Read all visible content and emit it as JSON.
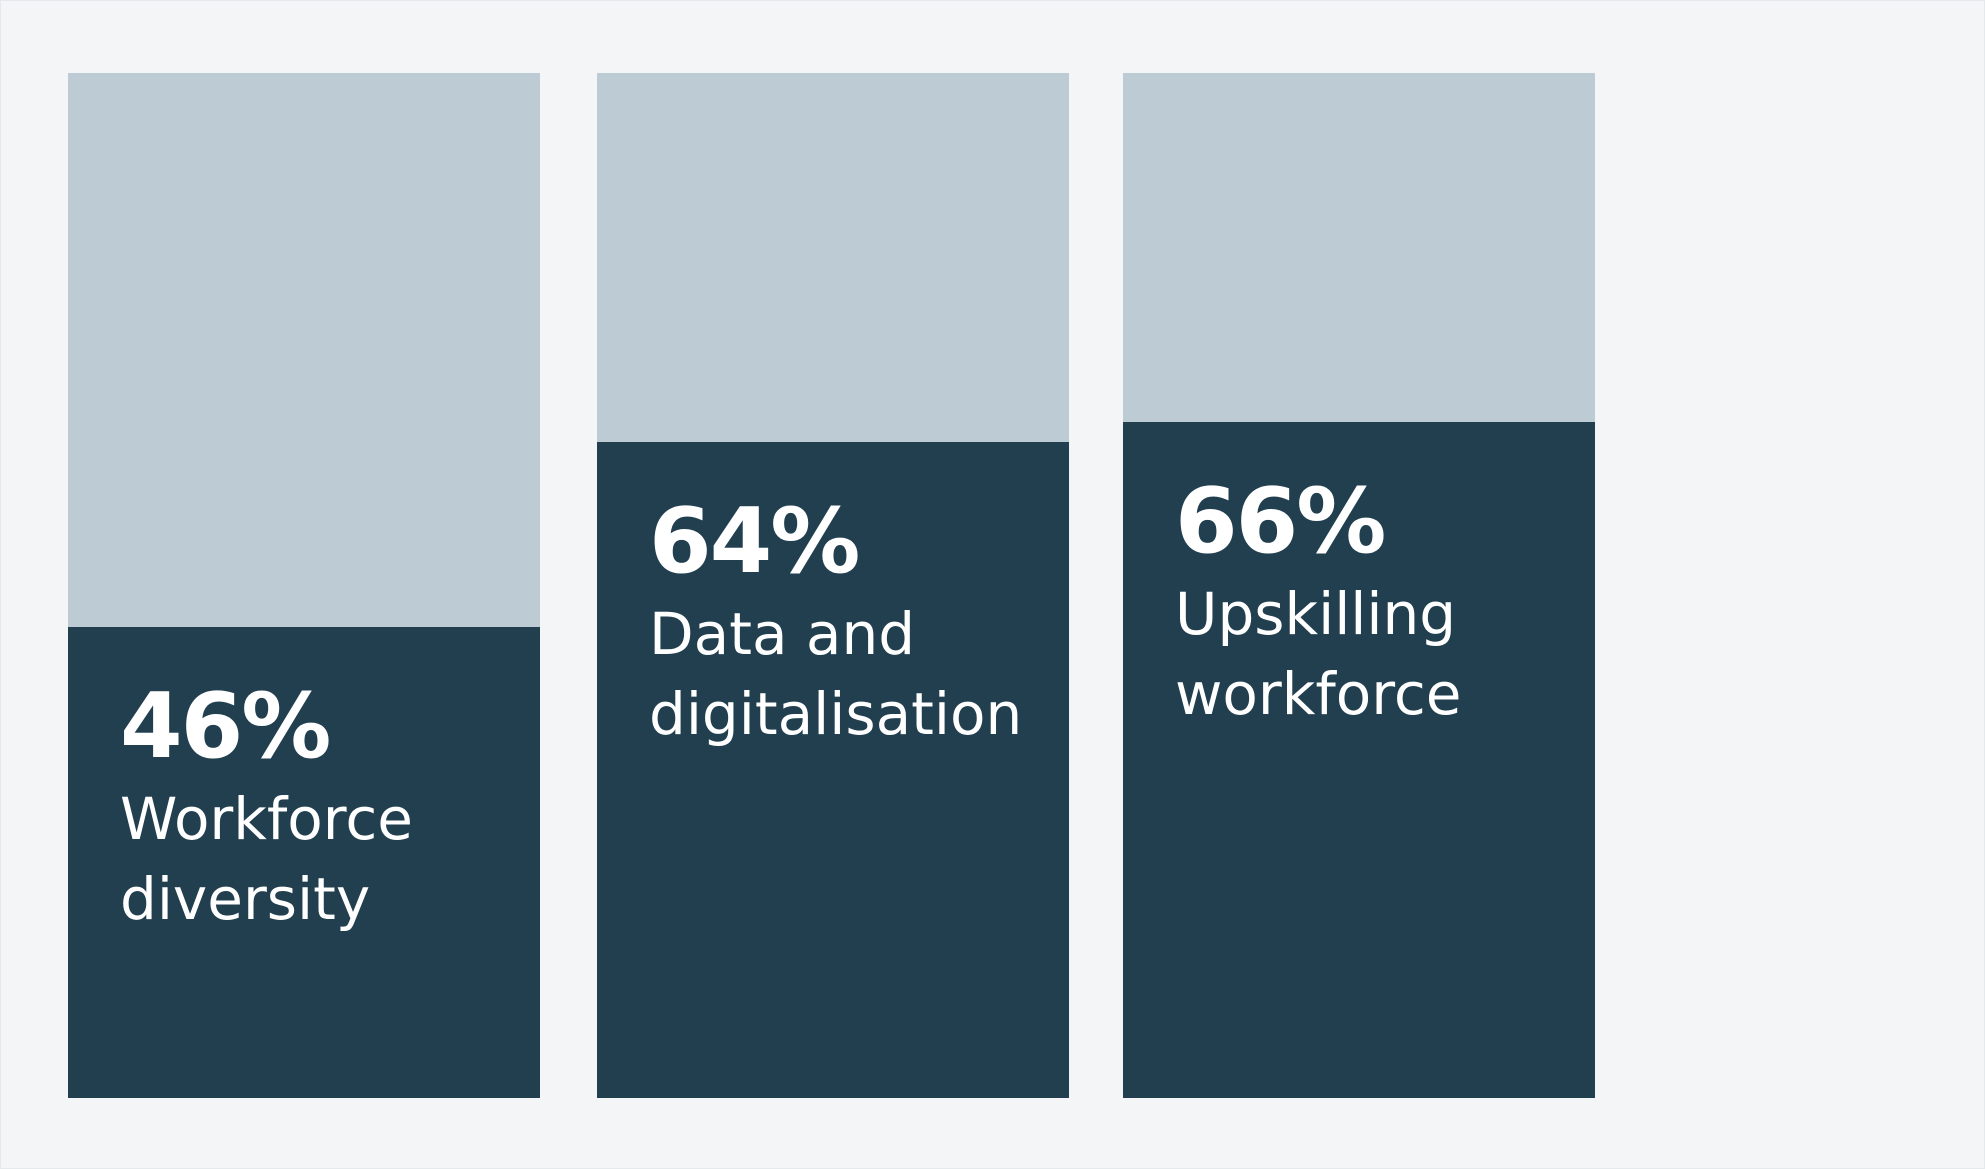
{
  "chart_data": {
    "type": "bar",
    "categories": [
      "Workforce diversity",
      "Data and digitalisation",
      "Upskilling workforce"
    ],
    "values": [
      46,
      64,
      66
    ],
    "value_labels": [
      "46%",
      "64%",
      "66%"
    ],
    "color": "#213f4f",
    "ylim": [
      0,
      100
    ]
  }
}
